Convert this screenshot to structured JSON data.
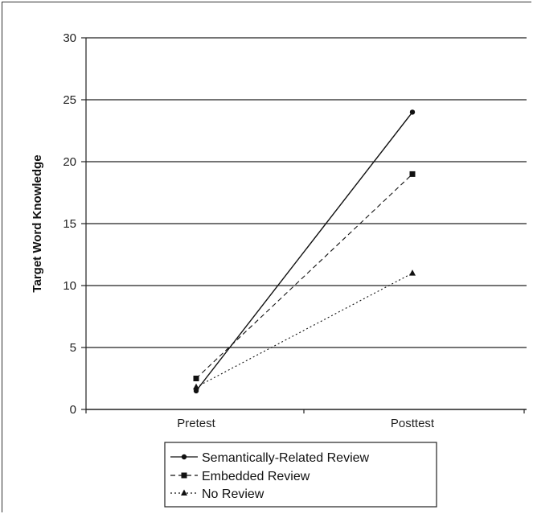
{
  "chart_data": {
    "type": "line",
    "categories": [
      "Pretest",
      "Posttest"
    ],
    "ylabel": "Target Word Knowledge",
    "ylim": [
      0,
      30
    ],
    "yticks": [
      0,
      5,
      10,
      15,
      20,
      25,
      30
    ],
    "grid": true,
    "legend_position": "bottom",
    "series": [
      {
        "name": "Semantically-Related Review",
        "values": [
          1.5,
          24
        ],
        "style": "solid",
        "marker": "circle"
      },
      {
        "name": "Embedded Review",
        "values": [
          2.5,
          19
        ],
        "style": "dashed",
        "marker": "square"
      },
      {
        "name": "No Review",
        "values": [
          1.8,
          11
        ],
        "style": "dotted",
        "marker": "triangle"
      }
    ]
  }
}
